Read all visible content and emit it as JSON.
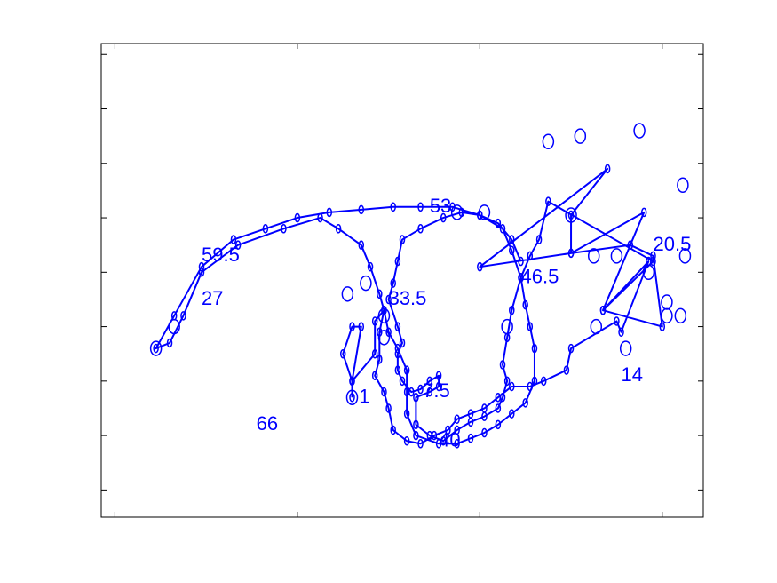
{
  "chart_data": {
    "type": "line",
    "title": "",
    "xlabel": "",
    "ylabel": "",
    "xlim": [
      -2.8,
      10.4
    ],
    "ylim": [
      -2.5,
      6.2
    ],
    "grid": false,
    "legend": "none",
    "color": "#0000ff",
    "xticks": [
      -2.5,
      1.5,
      5.5,
      9.5
    ],
    "yticks": [
      -2,
      -1,
      0,
      1,
      2,
      3,
      4,
      5,
      6
    ],
    "series": [
      {
        "points": [
          [
            2.7,
            -0.3
          ],
          [
            2.7,
            0.0
          ],
          [
            2.5,
            0.5
          ],
          [
            2.7,
            1.0
          ],
          [
            2.9,
            1.0
          ],
          [
            2.7,
            0.0
          ],
          [
            3.2,
            0.5
          ],
          [
            3.2,
            1.1
          ],
          [
            3.4,
            1.3
          ],
          [
            3.3,
            0.9
          ],
          [
            3.3,
            0.4
          ],
          [
            3.2,
            0.1
          ],
          [
            3.4,
            -0.2
          ],
          [
            3.5,
            -0.5
          ],
          [
            3.6,
            -0.9
          ],
          [
            3.9,
            -1.1
          ],
          [
            4.2,
            -1.15
          ],
          [
            4.5,
            -1.0
          ],
          [
            4.8,
            -0.9
          ],
          [
            5.0,
            -0.7
          ],
          [
            5.3,
            -0.6
          ],
          [
            5.6,
            -0.5
          ],
          [
            5.9,
            -0.3
          ],
          [
            6.2,
            -0.1
          ],
          [
            6.6,
            -0.1
          ],
          [
            6.9,
            0.0
          ],
          [
            7.4,
            0.2
          ],
          [
            7.5,
            0.6
          ],
          [
            8.5,
            1.1
          ],
          [
            8.6,
            0.9
          ],
          [
            9.2,
            2.2
          ],
          [
            8.2,
            1.3
          ],
          [
            9.5,
            1.0
          ],
          [
            9.3,
            2.3
          ],
          [
            8.8,
            2.5
          ],
          [
            7.5,
            2.35
          ],
          [
            5.5,
            2.1
          ],
          [
            8.3,
            3.9
          ],
          [
            7.5,
            3.05
          ],
          [
            7.5,
            2.35
          ],
          [
            9.1,
            3.1
          ],
          [
            8.2,
            1.3
          ],
          [
            9.3,
            2.2
          ],
          [
            7.0,
            3.3
          ],
          [
            6.8,
            2.6
          ],
          [
            6.6,
            2.3
          ],
          [
            6.4,
            1.9
          ],
          [
            6.2,
            1.3
          ],
          [
            6.1,
            0.8
          ],
          [
            6.0,
            0.3
          ],
          [
            6.1,
            0.0
          ],
          [
            6.0,
            -0.3
          ],
          [
            5.9,
            -0.5
          ],
          [
            5.6,
            -0.65
          ],
          [
            5.3,
            -0.75
          ],
          [
            5.0,
            -0.9
          ],
          [
            4.7,
            -1.1
          ],
          [
            4.4,
            -1.0
          ],
          [
            4.1,
            -0.8
          ],
          [
            4.1,
            -0.3
          ],
          [
            4.4,
            -0.2
          ],
          [
            4.6,
            -0.1
          ],
          [
            4.6,
            0.1
          ],
          [
            4.4,
            0.0
          ],
          [
            4.2,
            -0.15
          ],
          [
            4.0,
            -0.2
          ],
          [
            3.8,
            0.0
          ],
          [
            3.7,
            0.2
          ],
          [
            3.7,
            0.5
          ],
          [
            3.8,
            0.7
          ],
          [
            3.7,
            1.0
          ],
          [
            3.5,
            1.5
          ],
          [
            3.6,
            1.8
          ],
          [
            3.7,
            2.2
          ],
          [
            3.8,
            2.6
          ],
          [
            4.2,
            2.8
          ],
          [
            4.7,
            3.0
          ],
          [
            5.1,
            3.1
          ],
          [
            5.5,
            3.05
          ],
          [
            6.0,
            2.8
          ],
          [
            6.2,
            2.4
          ],
          [
            6.4,
            1.9
          ],
          [
            6.5,
            1.4
          ],
          [
            6.6,
            1.0
          ],
          [
            6.7,
            0.6
          ],
          [
            6.7,
            0.0
          ],
          [
            6.5,
            -0.4
          ],
          [
            6.2,
            -0.6
          ],
          [
            5.9,
            -0.8
          ],
          [
            5.6,
            -0.95
          ],
          [
            5.3,
            -1.05
          ],
          [
            5.0,
            -1.15
          ],
          [
            4.6,
            -1.15
          ],
          [
            4.1,
            -1.0
          ],
          [
            3.9,
            -0.6
          ],
          [
            3.9,
            -0.2
          ],
          [
            3.9,
            0.2
          ],
          [
            3.7,
            0.6
          ],
          [
            3.5,
            0.9
          ],
          [
            3.4,
            1.3
          ],
          [
            3.3,
            1.6
          ],
          [
            3.1,
            2.1
          ],
          [
            2.9,
            2.5
          ],
          [
            2.4,
            2.8
          ],
          [
            2.0,
            3.0
          ],
          [
            1.2,
            2.8
          ],
          [
            0.2,
            2.5
          ],
          [
            -0.6,
            2.0
          ],
          [
            -1.0,
            1.2
          ],
          [
            -1.3,
            0.7
          ],
          [
            -1.6,
            0.6
          ],
          [
            -1.2,
            1.2
          ],
          [
            -0.6,
            2.1
          ],
          [
            0.1,
            2.6
          ],
          [
            0.8,
            2.8
          ],
          [
            1.5,
            3.0
          ],
          [
            2.2,
            3.1
          ],
          [
            2.9,
            3.15
          ],
          [
            3.6,
            3.2
          ],
          [
            4.2,
            3.2
          ],
          [
            4.9,
            3.2
          ],
          [
            5.5,
            3.05
          ],
          [
            5.9,
            2.9
          ],
          [
            6.2,
            2.6
          ],
          [
            6.4,
            2.2
          ]
        ]
      }
    ],
    "ellipses": [
      [
        7.0,
        4.4
      ],
      [
        7.7,
        4.5
      ],
      [
        9.0,
        4.6
      ],
      [
        9.95,
        3.6
      ],
      [
        7.5,
        3.05
      ],
      [
        8.5,
        2.3
      ],
      [
        9.9,
        1.2
      ],
      [
        9.2,
        2.0
      ],
      [
        10.0,
        2.3
      ],
      [
        8.0,
        2.3
      ],
      [
        9.6,
        1.2
      ],
      [
        9.6,
        1.45
      ],
      [
        8.7,
        0.6
      ],
      [
        8.05,
        1.0
      ],
      [
        2.7,
        -0.3
      ],
      [
        2.6,
        1.6
      ],
      [
        3.0,
        1.8
      ],
      [
        3.4,
        1.2
      ],
      [
        3.4,
        0.8
      ],
      [
        6.1,
        1.0
      ],
      [
        5.6,
        3.1
      ],
      [
        5.0,
        3.1
      ],
      [
        -1.6,
        0.6
      ],
      [
        -1.2,
        1.0
      ]
    ],
    "annotations": [
      {
        "text": "1",
        "x": 2.85,
        "y": -0.4
      },
      {
        "text": "7.5",
        "x": 4.25,
        "y": -0.3
      },
      {
        "text": "14",
        "x": 8.6,
        "y": 0.0
      },
      {
        "text": "20.5",
        "x": 9.3,
        "y": 2.4
      },
      {
        "text": "27",
        "x": -0.6,
        "y": 1.4
      },
      {
        "text": "33.5",
        "x": 3.5,
        "y": 1.4
      },
      {
        "text": "40",
        "x": 4.6,
        "y": -1.2
      },
      {
        "text": "46.5",
        "x": 6.4,
        "y": 1.8
      },
      {
        "text": "53",
        "x": 4.4,
        "y": 3.1
      },
      {
        "text": "59.5",
        "x": -0.6,
        "y": 2.2
      },
      {
        "text": "66",
        "x": 0.6,
        "y": -0.9
      }
    ]
  }
}
